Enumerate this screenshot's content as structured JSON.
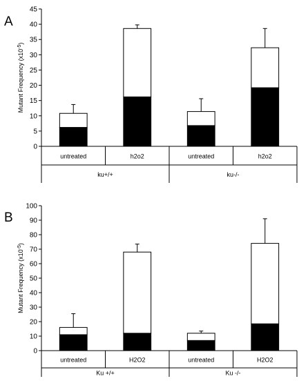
{
  "chart_data": [
    {
      "type": "bar",
      "stacked": true,
      "panel_label": "A",
      "ylabel": "Mutant Frequency (x10 -5)",
      "ylabel_main": "Mutant Frequency (x10",
      "ylabel_exp": "-5",
      "ylabel_close": ")",
      "ylim": [
        0,
        45
      ],
      "yticks": [
        0,
        5,
        10,
        15,
        20,
        25,
        30,
        35,
        40,
        45
      ],
      "categories": [
        "untreated",
        "h2o2",
        "untreated",
        "h2o2"
      ],
      "groups": [
        {
          "label": "ku+/+",
          "span": [
            0,
            1
          ]
        },
        {
          "label": "ku-/-",
          "span": [
            2,
            3
          ]
        }
      ],
      "series": [
        {
          "fill": "#000000",
          "values": [
            6.2,
            16.2,
            6.8,
            19.2
          ]
        },
        {
          "fill": "#ffffff",
          "values": [
            4.6,
            22.4,
            4.6,
            13.1
          ]
        }
      ],
      "totals": [
        10.8,
        38.6,
        11.4,
        32.3
      ],
      "error_upper": [
        2.9,
        1.2,
        4.2,
        6.3
      ]
    },
    {
      "type": "bar",
      "stacked": true,
      "panel_label": "B",
      "ylabel": "Mutant Frequency (x10 -5)",
      "ylabel_main": "Mutant Frequency (x10",
      "ylabel_exp": "-5",
      "ylabel_close": ")",
      "ylim": [
        0,
        100
      ],
      "yticks": [
        0,
        10,
        20,
        30,
        40,
        50,
        60,
        70,
        80,
        90,
        100
      ],
      "categories": [
        "untreated",
        "H2O2",
        "untreated",
        "H2O2"
      ],
      "groups": [
        {
          "label": "Ku +/+",
          "span": [
            0,
            1
          ]
        },
        {
          "label": "Ku -/-",
          "span": [
            2,
            3
          ]
        }
      ],
      "series": [
        {
          "fill": "#000000",
          "values": [
            11,
            12,
            7,
            18.5
          ]
        },
        {
          "fill": "#ffffff",
          "values": [
            5,
            56,
            5,
            55.5
          ]
        }
      ],
      "totals": [
        16,
        68,
        12,
        74
      ],
      "error_upper": [
        9.5,
        5.5,
        1.5,
        17
      ]
    }
  ]
}
